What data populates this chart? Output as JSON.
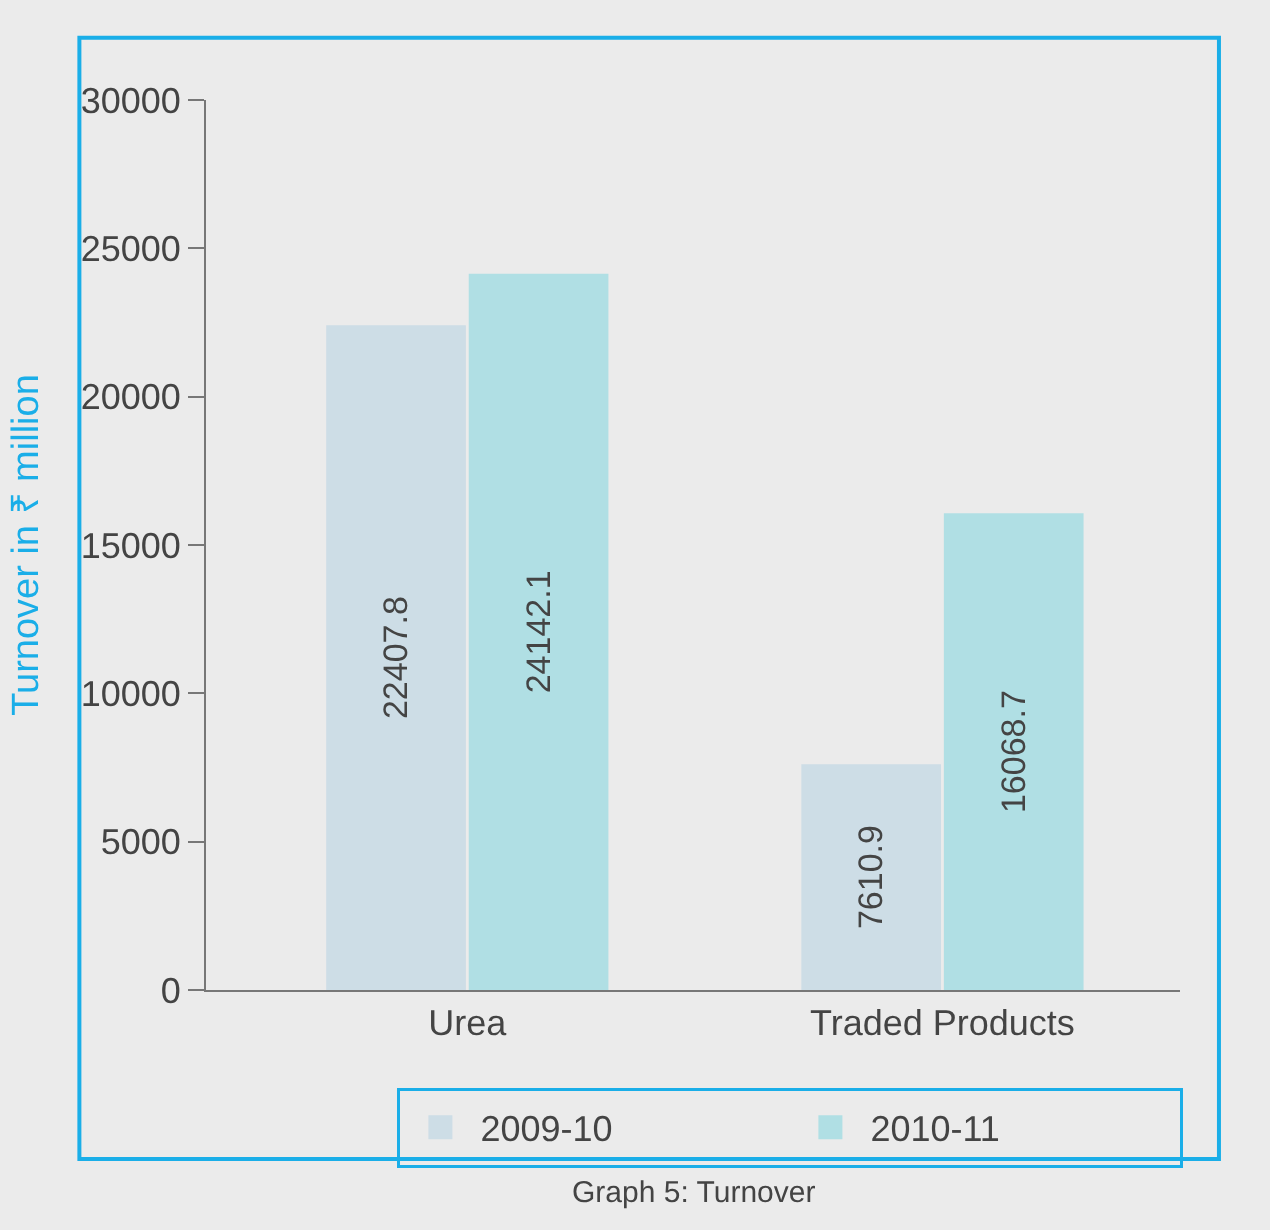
{
  "chart_data": {
    "type": "bar",
    "ylabel": "Turnover in ₹ million",
    "categories": [
      "Urea",
      "Traded Products"
    ],
    "series": [
      {
        "name": "2009-10",
        "color": "#cddde6",
        "values": [
          22407.8,
          7610.9
        ]
      },
      {
        "name": "2010-11",
        "color": "#b0dfe4",
        "values": [
          24142.1,
          16068.7
        ]
      }
    ],
    "ylim": [
      0,
      30000
    ],
    "yticks": [
      0,
      5000,
      10000,
      15000,
      20000,
      25000,
      30000
    ],
    "data_labels": true,
    "grid": false,
    "legend": "bottom",
    "annotations": [
      "Graph 5: Turnover"
    ]
  }
}
